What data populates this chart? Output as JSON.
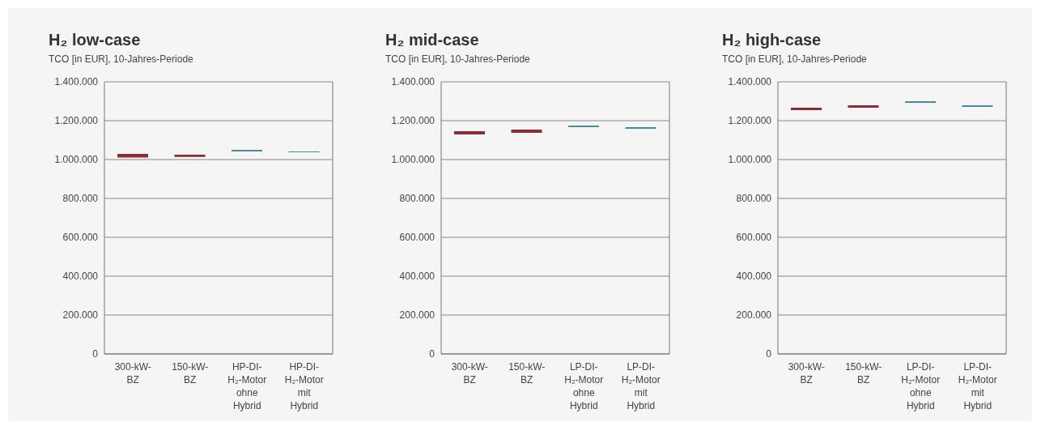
{
  "chart_data": [
    {
      "type": "bar",
      "title": "H₂ low-case",
      "subtitle": "TCO [in EUR], 10-Jahres-Periode",
      "categories": [
        "300-kW-\nBZ",
        "150-kW-\nBZ",
        "HP-DI-\nH₂-Motor\nohne\nHybrid",
        "HP-DI-\nH₂-Motor\nmit\nHybrid"
      ],
      "base": [
        1010000,
        1014000,
        1042000,
        1038000
      ],
      "values": [
        19000,
        11000,
        8000,
        4000
      ],
      "colors": [
        "#8b2c37",
        "#8b2c37",
        "#4a87a0",
        "#4a87a0"
      ],
      "ylim": [
        0,
        1400000
      ],
      "yticks": [
        {
          "value": 0,
          "label": "0"
        },
        {
          "value": 200000,
          "label": "200.000"
        },
        {
          "value": 400000,
          "label": "400.000"
        },
        {
          "value": 600000,
          "label": "600.000"
        },
        {
          "value": 800000,
          "label": "800.000"
        },
        {
          "value": 1000000,
          "label": "1.000.000"
        },
        {
          "value": 1200000,
          "label": "1.200.000"
        },
        {
          "value": 1400000,
          "label": "1.400.000"
        }
      ],
      "grid": "y"
    },
    {
      "type": "bar",
      "title": "H₂ mid-case",
      "subtitle": "TCO [in EUR], 10-Jahres-Periode",
      "categories": [
        "300-kW-\nBZ",
        "150-kW-\nBZ",
        "LP-DI-\nH₂-Motor\nohne\nHybrid",
        "LP-DI-\nH₂-Motor\nmit\nHybrid"
      ],
      "base": [
        1129000,
        1138000,
        1167000,
        1158000
      ],
      "values": [
        17000,
        16000,
        8000,
        9000
      ],
      "colors": [
        "#8b2c37",
        "#8b2c37",
        "#4a87a0",
        "#4a87a0"
      ],
      "ylim": [
        0,
        1400000
      ],
      "yticks": [
        {
          "value": 0,
          "label": "0"
        },
        {
          "value": 200000,
          "label": "200.000"
        },
        {
          "value": 400000,
          "label": "400.000"
        },
        {
          "value": 600000,
          "label": "600.000"
        },
        {
          "value": 800000,
          "label": "800.000"
        },
        {
          "value": 1000000,
          "label": "1.000.000"
        },
        {
          "value": 1200000,
          "label": "1.200.000"
        },
        {
          "value": 1400000,
          "label": "1.400.000"
        }
      ],
      "grid": "y"
    },
    {
      "type": "bar",
      "title": "H₂ high-case",
      "subtitle": "TCO [in EUR], 10-Jahres-Periode",
      "categories": [
        "300-kW-\nBZ",
        "150-kW-\nBZ",
        "LP-DI-\nH₂-Motor\nohne\nHybrid",
        "LP-DI-\nH₂-Motor\nmit\nHybrid"
      ],
      "base": [
        1254000,
        1267000,
        1292000,
        1271000
      ],
      "values": [
        13000,
        12000,
        8000,
        8000
      ],
      "colors": [
        "#8b2c37",
        "#8b2c37",
        "#4a87a0",
        "#4a87a0"
      ],
      "ylim": [
        0,
        1400000
      ],
      "yticks": [
        {
          "value": 0,
          "label": "0"
        },
        {
          "value": 200000,
          "label": "200.000"
        },
        {
          "value": 400000,
          "label": "400.000"
        },
        {
          "value": 600000,
          "label": "600.000"
        },
        {
          "value": 800000,
          "label": "800.000"
        },
        {
          "value": 1000000,
          "label": "1.000.000"
        },
        {
          "value": 1200000,
          "label": "1.200.000"
        },
        {
          "value": 1400000,
          "label": "1.400.000"
        }
      ],
      "grid": "y"
    }
  ]
}
